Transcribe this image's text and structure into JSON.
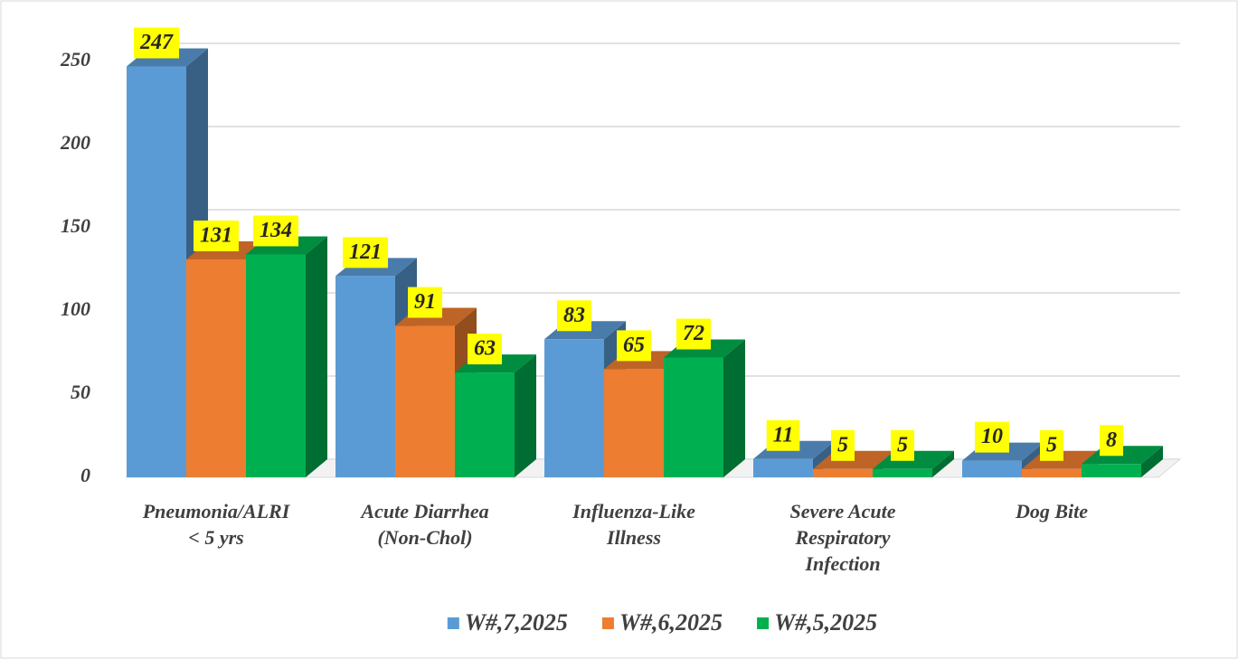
{
  "chart_data": {
    "type": "bar3d",
    "categories": [
      [
        "Pneumonia/ALRI",
        "< 5 yrs"
      ],
      [
        "Acute Diarrhea",
        "(Non-Chol)"
      ],
      [
        "Influenza-Like",
        "Illness"
      ],
      [
        "Severe Acute",
        "Respiratory",
        "Infection"
      ],
      [
        "Dog Bite"
      ]
    ],
    "series": [
      {
        "name": "W#,7,2025",
        "color": "#5b9bd5",
        "values": [
          247,
          121,
          83,
          11,
          10
        ]
      },
      {
        "name": "W#,6,2025",
        "color": "#ed7d31",
        "values": [
          131,
          91,
          65,
          5,
          5
        ]
      },
      {
        "name": "W#,5,2025",
        "color": "#00b050",
        "values": [
          134,
          63,
          72,
          5,
          8
        ]
      }
    ],
    "ylim": [
      0,
      250
    ],
    "yticks": [
      0,
      50,
      100,
      150,
      200,
      250
    ],
    "grid": true,
    "legend": "bottom",
    "label_box_color": "#ffff00"
  }
}
